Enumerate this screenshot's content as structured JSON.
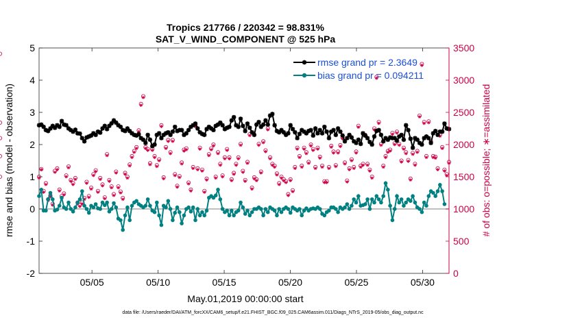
{
  "chart_data": {
    "type": "line",
    "title": "Tropics 217766 / 220342 = 98.831%",
    "subtitle": "SAT_V_WIND_COMPONENT @ 525 hPa",
    "xlabel": "May.01,2019 00:00:00 start",
    "ylabel": "rmse and bias (model - observation)",
    "y2label": "# of obs: o=possible; ∗=assimilated",
    "footer": "data file: /Users/raeder/DAI/ATM_forcXX/CAM6_setup/f.e21.FHIST_BGC.f09_025.CAM6assim.011/Diags_NTrS_2019-05/obs_diag_output.nc",
    "x_unit": "day of May 2019",
    "xlim": [
      1.0,
      32.0
    ],
    "ylim": [
      -2,
      5
    ],
    "y2lim": [
      0,
      3500
    ],
    "x_ticks": [
      5,
      10,
      15,
      20,
      25,
      30
    ],
    "x_tick_labels": [
      "05/05",
      "05/10",
      "05/15",
      "05/20",
      "05/25",
      "05/30"
    ],
    "y_ticks": [
      -2,
      -1,
      0,
      1,
      2,
      3,
      4,
      5
    ],
    "y_tick_labels": [
      "-2",
      "-1",
      "0",
      "1",
      "2",
      "3",
      "4",
      "5"
    ],
    "y2_ticks": [
      0,
      500,
      1000,
      1500,
      2000,
      2500,
      3000,
      3500
    ],
    "y2_tick_labels": [
      "0",
      "500",
      "1000",
      "1500",
      "2000",
      "2500",
      "3000",
      "3500"
    ],
    "colors": {
      "rmse": "#000000",
      "bias": "#008080",
      "obs": "#cc0044",
      "legend_text": "#1a4fd6",
      "zero_line": "#aaaaaa"
    },
    "legend_position": "top-right",
    "series": [
      {
        "name": "rmse grand pr = 2.3649",
        "values": [
          2.6,
          2.62,
          2.55,
          2.45,
          2.42,
          2.5,
          2.58,
          2.52,
          2.6,
          2.55,
          2.73,
          2.62,
          2.6,
          2.5,
          2.45,
          2.4,
          2.46,
          2.35,
          2.34,
          2.2,
          2.1,
          2.22,
          2.25,
          2.28,
          2.35,
          2.3,
          2.4,
          2.37,
          2.5,
          2.58,
          2.48,
          2.58,
          2.66,
          2.75,
          2.68,
          2.6,
          2.55,
          2.45,
          2.42,
          2.5,
          2.42,
          2.35,
          2.3,
          2.28,
          2.32,
          2.2,
          2.15,
          2.05,
          2.3,
          2.15,
          1.95,
          2.0,
          2.3,
          2.35,
          2.2,
          2.3,
          2.35,
          2.38,
          2.3,
          2.4,
          2.55,
          2.42,
          2.45,
          2.45,
          2.3,
          2.35,
          2.45,
          2.55,
          2.6,
          2.65,
          2.5,
          2.38,
          2.33,
          2.3,
          2.48,
          2.55,
          2.5,
          2.45,
          2.58,
          2.62,
          2.68,
          2.6,
          2.48,
          2.52,
          2.55,
          2.75,
          2.85,
          2.6,
          2.55,
          2.8,
          2.58,
          2.42,
          2.65,
          2.52,
          2.38,
          2.3,
          2.62,
          2.7,
          2.55,
          2.62,
          2.75,
          2.62,
          2.9,
          2.95,
          2.6,
          2.42,
          2.38,
          2.45,
          2.38,
          2.3,
          2.35,
          2.6,
          2.48,
          2.38,
          2.2,
          2.33,
          2.45,
          2.4,
          2.35,
          2.42,
          2.45,
          2.28,
          2.5,
          2.35,
          2.45,
          2.35,
          2.55,
          2.4,
          2.2,
          2.4,
          2.45,
          2.3,
          2.5,
          2.4,
          2.28,
          2.1,
          2.2,
          2.3,
          2.22,
          2.1,
          2.05,
          2.15,
          2.02,
          2.35,
          2.28,
          2.2,
          2.08,
          2.0,
          2.25,
          2.42,
          2.45,
          2.3,
          2.1,
          2.2,
          2.15,
          2.22,
          2.2,
          2.2,
          2.12,
          2.25,
          2.3,
          2.15,
          2.6,
          2.45,
          2.18,
          1.9,
          2.2,
          2.15,
          2.05,
          2.0,
          2.2,
          2.25,
          2.2,
          2.05,
          2.35,
          2.42,
          2.3,
          2.4,
          2.4,
          2.65,
          2.5,
          2.48
        ]
      },
      {
        "name": "bias grand pr = 0.094211",
        "values": [
          0.4,
          0.6,
          -0.05,
          -0.05,
          0.3,
          0.5,
          0.3,
          -0.05,
          -0.02,
          0.1,
          0.35,
          0.05,
          0.0,
          0.2,
          0.0,
          -0.08,
          0.05,
          0.2,
          0.3,
          0.55,
          0.1,
          0.0,
          -0.12,
          0.1,
          0.05,
          0.15,
          0.02,
          0.0,
          0.2,
          0.12,
          0.2,
          -0.08,
          0.0,
          0.18,
          0.05,
          -0.3,
          -0.35,
          -0.65,
          -0.2,
          0.05,
          -0.35,
          0.1,
          0.2,
          0.25,
          0.15,
          0.1,
          0.05,
          0.1,
          0.3,
          0.1,
          -0.05,
          -0.1,
          0.2,
          -0.2,
          -0.5,
          0.1,
          0.05,
          0.25,
          0.0,
          -0.35,
          -0.12,
          0.05,
          -0.1,
          -0.45,
          -0.2,
          0.0,
          0.05,
          -0.08,
          0.05,
          -0.35,
          0.0,
          -0.2,
          -0.1,
          -0.2,
          -0.05,
          0.35,
          0.4,
          0.35,
          0.42,
          0.6,
          0.3,
          0.0,
          -0.1,
          -0.05,
          -0.2,
          -0.05,
          -0.2,
          -0.1,
          -0.05,
          0.2,
          0.05,
          -0.15,
          -0.05,
          -0.2,
          -0.1,
          0.0,
          0.0,
          0.05,
          0.0,
          -0.2,
          0.0,
          -0.1,
          0.05,
          0.0,
          -0.05,
          -0.2,
          0.0,
          -0.1,
          0.0,
          0.05,
          0.0,
          -0.12,
          0.05,
          0.0,
          -0.05,
          0.0,
          -0.2,
          -0.05,
          0.02,
          -0.05,
          0.0,
          0.02,
          0.0,
          0.05,
          0.0,
          -0.15,
          -0.2,
          -0.1,
          -0.05,
          0.05,
          0.05,
          0.0,
          -0.1,
          0.05,
          0.0,
          0.05,
          0.15,
          0.0,
          0.1,
          0.3,
          0.2,
          0.4,
          0.1,
          0.12,
          0.15,
          0.3,
          0.0,
          0.3,
          0.2,
          0.4,
          0.3,
          0.2,
          0.4,
          0.8,
          0.6,
          0.1,
          -0.35,
          0.0,
          0.4,
          0.2,
          0.3,
          0.1,
          0.2,
          0.3,
          0.25,
          0.4,
          0.2,
          0.05,
          0.0,
          -0.1,
          0.2,
          0.1,
          0.4,
          0.55,
          0.5,
          0.4,
          0.55,
          0.75,
          0.55,
          0.15
        ]
      }
    ],
    "obs_possible": [
      1500,
      1620,
      1280,
      1400,
      1150,
      1210,
      1080,
      1590,
      1630,
      1300,
      1200,
      1240,
      1520,
      1660,
      1450,
      1400,
      1480,
      1100,
      1060,
      1100,
      1170,
      1420,
      1200,
      1330,
      1540,
      1600,
      1280,
      1480,
      1380,
      1180,
      1850,
      1450,
      1350,
      1230,
      1580,
      1350,
      1270,
      1170,
      1560,
      1500,
      1690,
      1820,
      1900,
      1960,
      2220,
      2630,
      2750,
      1960,
      1930,
      1710,
      1930,
      1820,
      1680,
      1770,
      2300,
      1490,
      1960,
      2070,
      1880,
      2070,
      1540,
      1360,
      1510,
      1720,
      1920,
      1940,
      1410,
      1300,
      1650,
      2300,
      1630,
      1950,
      1610,
      1280,
      1470,
      1850,
      1940,
      2000,
      1500,
      1880,
      1700,
      1520,
      1800,
      1930,
      1800,
      1460,
      1560,
      1700,
      1800,
      2010,
      1590,
      1450,
      1730,
      2160,
      1330,
      1490,
      1460,
      2010,
      1580,
      2050,
      1910,
      2250,
      1800,
      1700,
      1670,
      1550,
      1400,
      1500,
      1460,
      1430,
      1230,
      1460,
      1290,
      1650,
      1950,
      1820,
      1670,
      1950,
      1880,
      1730,
      2000,
      1930,
      1650,
      1950,
      1810,
      1670,
      1430,
      1430,
      1650,
      1980,
      1890,
      1680,
      1890,
      1990,
      2110,
      1720,
      1440,
      1630,
      1770,
      1650,
      1890,
      2290,
      1670,
      1700,
      2150,
      1700,
      1610,
      1500,
      2250,
      3050,
      2350,
      2010,
      1670,
      1820,
      1900,
      1920,
      2180,
      2020,
      2200,
      2010,
      1750,
      1950,
      1880,
      1760,
      1470,
      1870,
      1700,
      1900,
      2450,
      3250,
      2350,
      1820,
      2360,
      2050,
      1820,
      1810,
      1630,
      2150,
      1960,
      1610,
      1540,
      1730,
      3410,
      2340,
      1820,
      1500,
      2100
    ],
    "obs_assimilated": [
      1480,
      1610,
      1260,
      1380,
      1130,
      1190,
      1060,
      1570,
      1610,
      1280,
      1180,
      1220,
      1500,
      1640,
      1430,
      1380,
      1460,
      1080,
      1040,
      1080,
      1150,
      1400,
      1180,
      1310,
      1520,
      1580,
      1260,
      1460,
      1360,
      1160,
      1830,
      1430,
      1330,
      1210,
      1560,
      1330,
      1250,
      1150,
      1540,
      1480,
      1670,
      1800,
      1880,
      1940,
      2200,
      2610,
      2730,
      1940,
      1910,
      1690,
      1910,
      1800,
      1660,
      1750,
      2280,
      1470,
      1940,
      2050,
      1860,
      2050,
      1520,
      1340,
      1490,
      1700,
      1900,
      1920,
      1390,
      1280,
      1630,
      2280,
      1610,
      1930,
      1590,
      1260,
      1450,
      1830,
      1920,
      1980,
      1480,
      1860,
      1680,
      1500,
      1780,
      1910,
      1780,
      1440,
      1540,
      1680,
      1780,
      1990,
      1570,
      1430,
      1710,
      2140,
      1310,
      1470,
      1440,
      1990,
      1560,
      2030,
      1890,
      2230,
      1780,
      1680,
      1650,
      1530,
      1380,
      1480,
      1440,
      1410,
      1210,
      1440,
      1270,
      1630,
      1930,
      1800,
      1650,
      1930,
      1860,
      1710,
      1980,
      1910,
      1630,
      1930,
      1790,
      1650,
      1410,
      1410,
      1630,
      1960,
      1870,
      1660,
      1870,
      1970,
      2090,
      1700,
      1420,
      1610,
      1750,
      1630,
      1870,
      2270,
      1650,
      1680,
      2130,
      1680,
      1590,
      1480,
      2230,
      3030,
      2330,
      1990,
      1650,
      1800,
      1880,
      1900,
      2160,
      2000,
      2180,
      1990,
      1730,
      1930,
      1860,
      1740,
      1450,
      1850,
      1680,
      1880,
      2430,
      3230,
      2330,
      1800,
      2340,
      2030,
      1800,
      1790,
      1610,
      2130,
      1940,
      1590,
      1520,
      1710,
      3390,
      2320,
      1800,
      1480,
      2080
    ]
  }
}
